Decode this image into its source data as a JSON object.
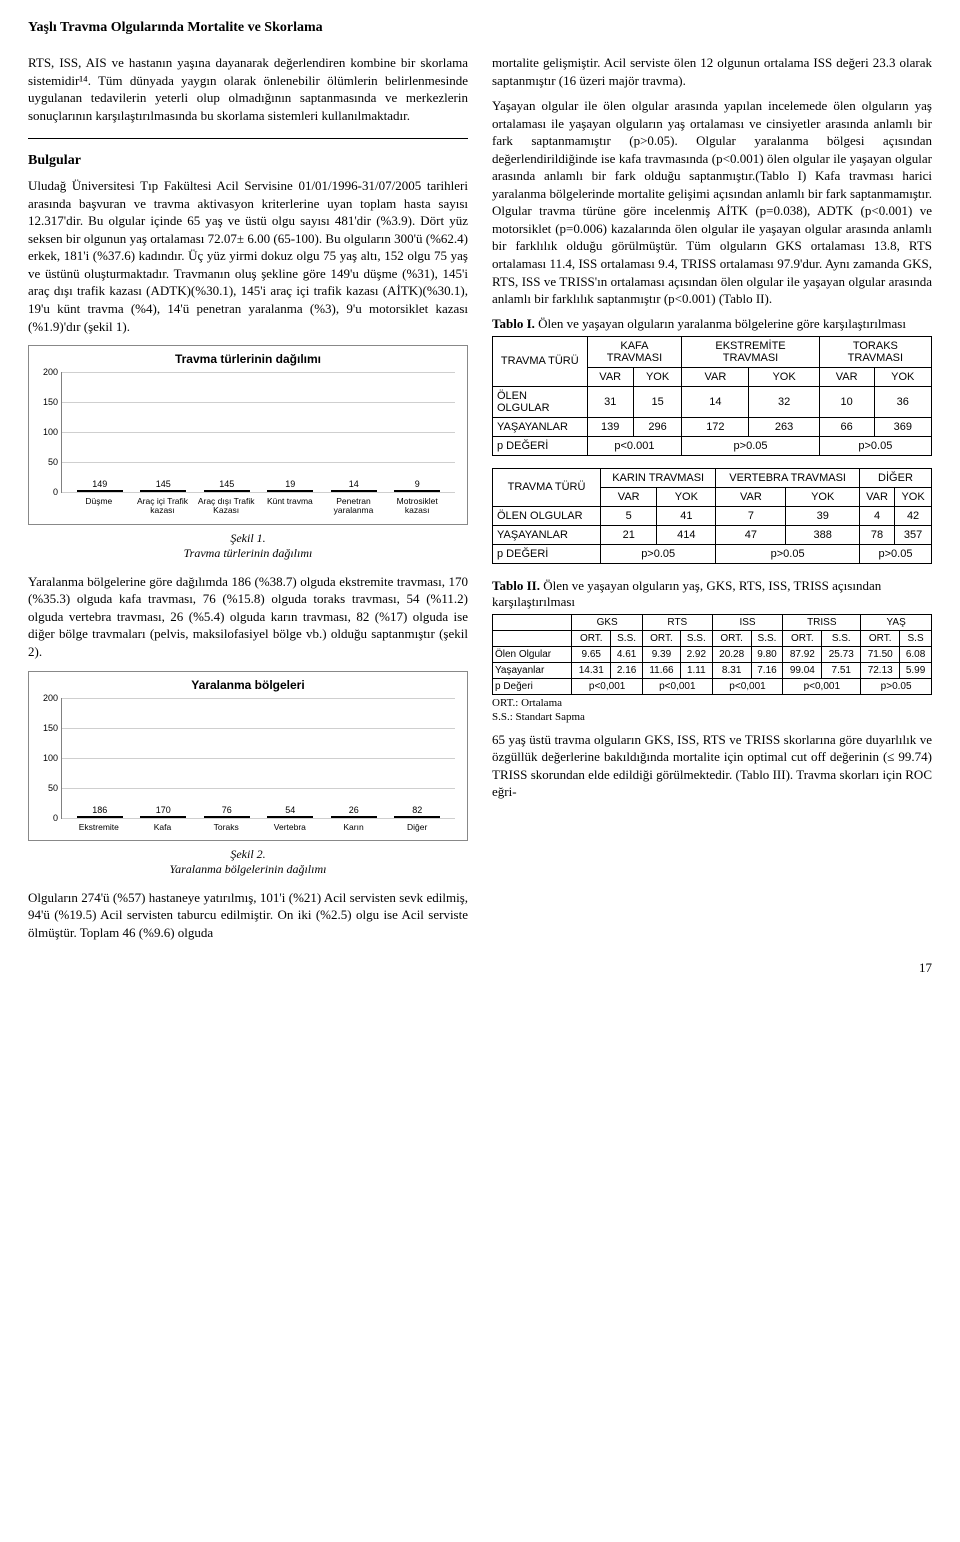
{
  "page_title": "Yaşlı Travma Olgularında Mortalite ve Skorlama",
  "page_number": "17",
  "left_column": {
    "p1": "RTS, ISS, AIS ve hastanın yaşına dayanarak değerlendiren kombine bir skorlama sistemidir¹⁴. Tüm dünyada yaygın olarak önlenebilir ölümlerin belirlenmesinde uygulanan tedavilerin yeterli olup olmadığının saptanmasında ve merkezlerin sonuçlarının karşılaştırılmasında bu skorlama sistemleri kullanılmaktadır.",
    "heading": "Bulgular",
    "p2": "Uludağ Üniversitesi Tıp Fakültesi Acil Servisine 01/01/1996-31/07/2005 tarihleri arasında başvuran ve travma aktivasyon kriterlerine uyan toplam hasta sayısı 12.317'dir. Bu olgular içinde 65 yaş ve üstü olgu sayısı 481'dir (%3.9). Dört yüz seksen bir olgunun yaş ortalaması 72.07± 6.00 (65-100). Bu olguların 300'ü (%62.4) erkek, 181'i (%37.6) kadındır. Üç yüz yirmi dokuz olgu 75 yaş altı, 152 olgu 75 yaş ve üstünü oluşturmaktadır. Travmanın oluş şekline göre 149'u düşme (%31), 145'i araç dışı trafik kazası (ADTK)(%30.1), 145'i araç içi trafik kazası (AİTK)(%30.1), 19'u künt travma (%4), 14'ü penetran yaralanma (%3), 9'u motorsiklet kazası (%1.9)'dır (şekil 1).",
    "fig1_caption_label": "Şekil 1.",
    "fig1_caption_text": "Travma türlerinin dağılımı",
    "p3": "Yaralanma bölgelerine göre dağılımda 186 (%38.7) olguda ekstremite travması, 170 (%35.3) olguda kafa travması, 76 (%15.8) olguda toraks travması, 54 (%11.2) olguda vertebra travması, 26 (%5.4) olguda karın travması, 82 (%17) olguda ise diğer bölge travmaları (pelvis, maksilofasiyel bölge vb.) olduğu saptanmıştır (şekil 2).",
    "fig2_caption_label": "Şekil 2.",
    "fig2_caption_text": "Yaralanma bölgelerinin dağılımı",
    "p4": "Olguların 274'ü (%57) hastaneye yatırılmış, 101'i (%21) Acil servisten sevk edilmiş, 94'ü (%19.5) Acil servisten taburcu edilmiştir. On iki (%2.5) olgu ise Acil serviste ölmüştür. Toplam 46 (%9.6) olguda"
  },
  "right_column": {
    "p1": "mortalite gelişmiştir. Acil serviste ölen 12 olgunun ortalama ISS değeri 23.3 olarak saptanmıştır (16 üzeri majör travma).",
    "p2": "Yaşayan olgular ile ölen olgular arasında yapılan incelemede ölen olguların yaş ortalaması ile yaşayan olguların yaş ortalaması ve cinsiyetler arasında anlamlı bir fark saptanmamıştır (p>0.05). Olgular yaralanma bölgesi açısından değerlendirildiğinde ise kafa travmasında (p<0.001) ölen olgular ile yaşayan olgular arasında anlamlı bir fark olduğu saptanmıştır.(Tablo I) Kafa travması harici yaralanma bölgelerinde mortalite gelişimi açısından anlamlı bir fark saptanmamıştır. Olgular travma türüne göre incelenmiş AİTK (p=0.038), ADTK (p<0.001) ve motorsiklet (p=0.006) kazalarında ölen olgular ile yaşayan olgular arasında anlamlı bir farklılık olduğu görülmüştür. Tüm olguların GKS ortalaması 13.8, RTS ortalaması 11.4, ISS ortalaması 9.4, TRISS ortalaması 97.9'dur. Aynı zamanda GKS, RTS, ISS ve TRISS'ın ortalaması açısından ölen olgular ile yaşayan olgular arasında anlamlı bir farklılık saptanmıştır (p<0.001) (Tablo II).",
    "tbl1_caption_bold": "Tablo I.",
    "tbl1_caption_rest": " Ölen ve yaşayan olguların yaralanma bölgelerine göre karşılaştırılması",
    "tbl2_caption_bold": "Tablo II.",
    "tbl2_caption_rest": " Ölen ve yaşayan olguların yaş, GKS, RTS, ISS, TRISS açısından karşılaştırılması",
    "footnote1": "ORT.: Ortalama",
    "footnote2": "S.S.: Standart Sapma",
    "p3": "65 yaş üstü travma olguların GKS, ISS, RTS ve TRISS skorlarına göre duyarlılık ve özgüllük değerlerine bakıldığında mortalite için optimal cut off değerinin (≤ 99.74) TRISS skorundan elde edildiği görülmektedir. (Tablo III). Travma skorları için ROC eğri-"
  },
  "chart1": {
    "title": "Travma türlerinin dağılımı",
    "categories": [
      "Düşme",
      "Araç içi Trafik kazası",
      "Araç dışı Trafik Kazası",
      "Künt travma",
      "Penetran yaralanma",
      "Motrosiklet kazası"
    ],
    "values": [
      149,
      145,
      145,
      19,
      14,
      9
    ],
    "ylim": [
      0,
      200
    ],
    "yticks": [
      0,
      50,
      100,
      150,
      200
    ],
    "bar_color": "#a0a8c0",
    "grid_color": "#cfcfcf"
  },
  "chart2": {
    "title": "Yaralanma bölgeleri",
    "categories": [
      "Ekstremite",
      "Kafa",
      "Toraks",
      "Vertebra",
      "Karın",
      "Diğer"
    ],
    "values": [
      186,
      170,
      76,
      54,
      26,
      82
    ],
    "ylim": [
      0,
      200
    ],
    "yticks": [
      0,
      50,
      100,
      150,
      200
    ],
    "bar_color": "#a0a8c0",
    "grid_color": "#cfcfcf"
  },
  "table1a": {
    "group_headers": [
      "TRAVMA TÜRÜ",
      "KAFA TRAVMASI",
      "EKSTREMİTE TRAVMASI",
      "TORAKS TRAVMASI"
    ],
    "sub": [
      "VAR",
      "YOK",
      "VAR",
      "YOK",
      "VAR",
      "YOK"
    ],
    "r1": [
      "ÖLEN OLGULAR",
      "31",
      "15",
      "14",
      "32",
      "10",
      "36"
    ],
    "r2": [
      "YAŞAYANLAR",
      "139",
      "296",
      "172",
      "263",
      "66",
      "369"
    ],
    "r3": [
      "p DEĞERİ",
      "p<0.001",
      "p>0.05",
      "p>0.05"
    ]
  },
  "table1b": {
    "group_headers": [
      "TRAVMA TÜRÜ",
      "KARIN TRAVMASI",
      "VERTEBRA TRAVMASI",
      "DİĞER"
    ],
    "sub": [
      "VAR",
      "YOK",
      "VAR",
      "YOK",
      "VAR",
      "YOK"
    ],
    "r1": [
      "ÖLEN OLGULAR",
      "5",
      "41",
      "7",
      "39",
      "4",
      "42"
    ],
    "r2": [
      "YAŞAYANLAR",
      "21",
      "414",
      "47",
      "388",
      "78",
      "357"
    ],
    "r3": [
      "p DEĞERİ",
      "p>0.05",
      "p>0.05",
      "p>0.05"
    ]
  },
  "table2": {
    "top": [
      "",
      "GKS",
      "RTS",
      "ISS",
      "TRISS",
      "YAŞ"
    ],
    "sub": [
      "",
      "ORT.",
      "S.S.",
      "ORT.",
      "S.S.",
      "ORT.",
      "S.S.",
      "ORT.",
      "S.S.",
      "ORT.",
      "S.S"
    ],
    "r1": [
      "Ölen Olgular",
      "9.65",
      "4.61",
      "9.39",
      "2.92",
      "20.28",
      "9.80",
      "87.92",
      "25.73",
      "71.50",
      "6.08"
    ],
    "r2": [
      "Yaşayanlar",
      "14.31",
      "2.16",
      "11.66",
      "1.11",
      "8.31",
      "7.16",
      "99.04",
      "7.51",
      "72.13",
      "5.99"
    ],
    "r3": [
      "p Değeri",
      "p<0,001",
      "p<0,001",
      "p<0,001",
      "p<0,001",
      "p>0.05"
    ]
  }
}
